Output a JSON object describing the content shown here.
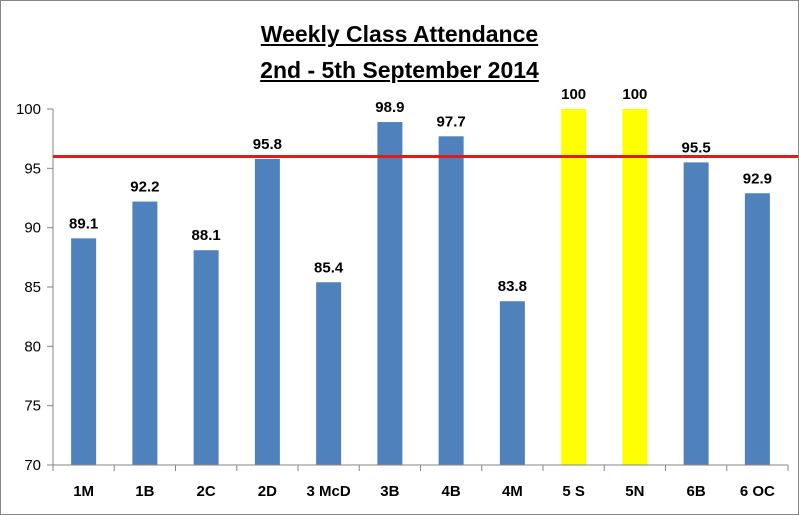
{
  "chart_data": {
    "type": "bar",
    "title": "Weekly Class Attendance",
    "subtitle": "2nd - 5th September 2014",
    "categories": [
      "1M",
      "1B",
      "2C",
      "2D",
      "3 McD",
      "3B",
      "4B",
      "4M",
      "5 S",
      "5N",
      "6B",
      "6 OC"
    ],
    "values": [
      89.1,
      92.2,
      88.1,
      95.8,
      85.4,
      98.9,
      97.7,
      83.8,
      100,
      100,
      95.5,
      92.9
    ],
    "data_labels": [
      "89.1",
      "92.2",
      "88.1",
      "95.8",
      "85.4",
      "98.9",
      "97.7",
      "83.8",
      "100",
      "100",
      "95.5",
      "92.9"
    ],
    "bar_colors": [
      "#4F81BD",
      "#4F81BD",
      "#4F81BD",
      "#4F81BD",
      "#4F81BD",
      "#4F81BD",
      "#4F81BD",
      "#4F81BD",
      "#FFFF00",
      "#FFFF00",
      "#4F81BD",
      "#4F81BD"
    ],
    "ylim": [
      70,
      100
    ],
    "yticks": [
      70,
      75,
      80,
      85,
      90,
      95,
      100
    ],
    "target_line": {
      "value": 96,
      "color": "#E31A1C"
    },
    "xlabel": "",
    "ylabel": "",
    "grid": false,
    "legend": "none"
  },
  "colors": {
    "bar_default": "#4F81BD",
    "bar_highlight": "#FFFF00",
    "axis": "#868686",
    "target_line": "#E31A1C"
  }
}
